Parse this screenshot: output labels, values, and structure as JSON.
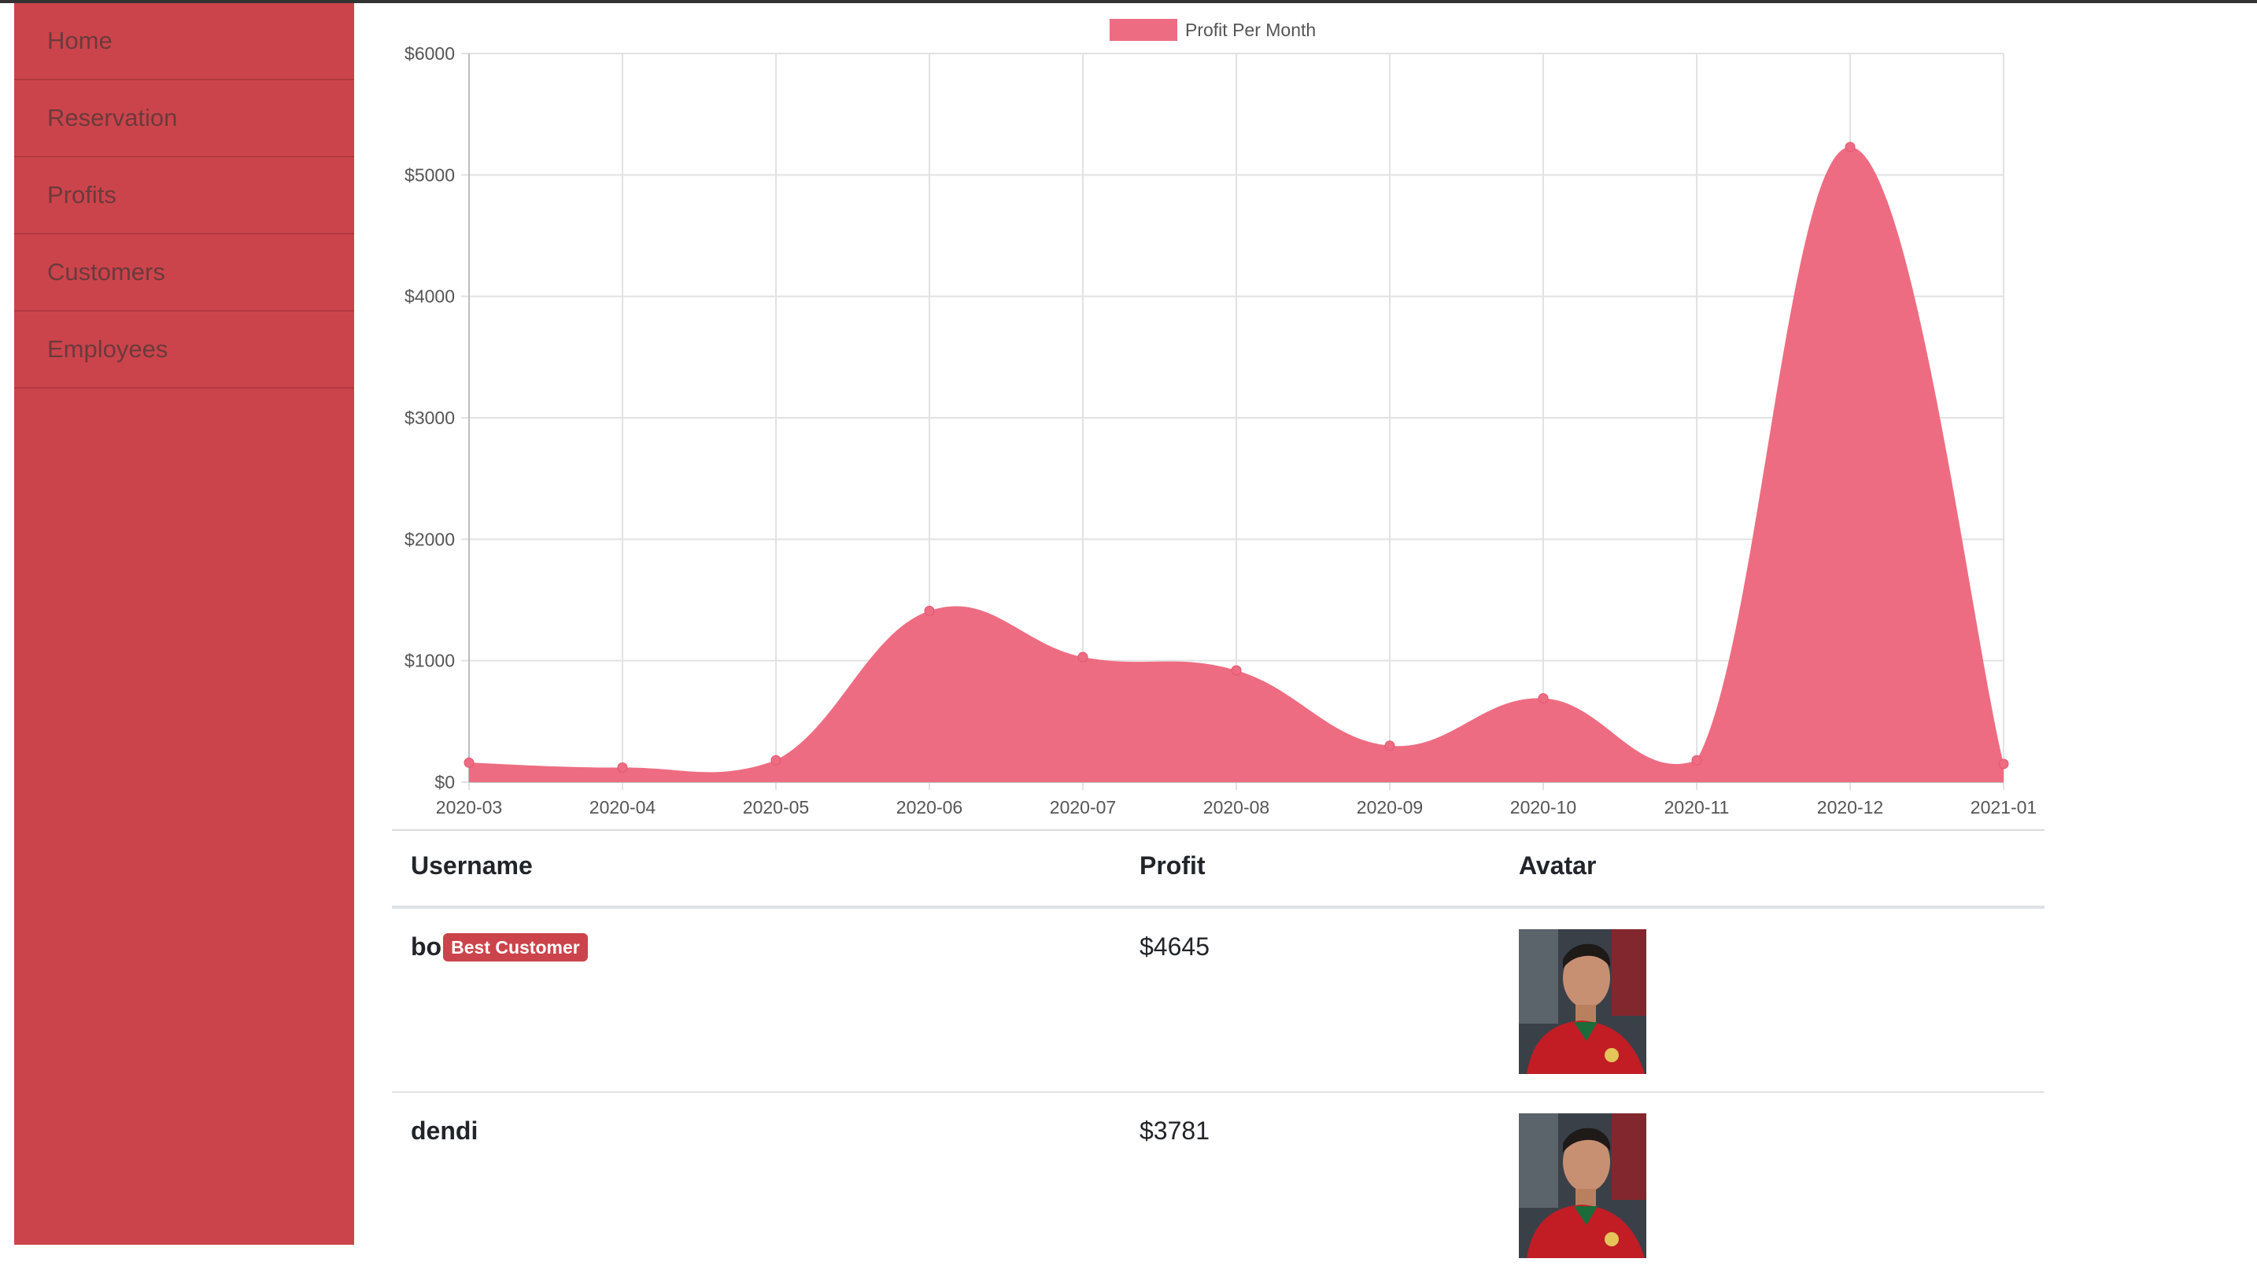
{
  "sidebar": {
    "items": [
      {
        "label": "Home"
      },
      {
        "label": "Reservation"
      },
      {
        "label": "Profits"
      },
      {
        "label": "Customers"
      },
      {
        "label": "Employees"
      }
    ]
  },
  "chart_data": {
    "type": "area",
    "legend": [
      "Profit Per Month"
    ],
    "legend_position": "top-center",
    "x": [
      "2020-03",
      "2020-04",
      "2020-05",
      "2020-06",
      "2020-07",
      "2020-08",
      "2020-09",
      "2020-10",
      "2020-11",
      "2020-12",
      "2021-01"
    ],
    "series": [
      {
        "name": "Profit Per Month",
        "values": [
          160,
          120,
          180,
          1410,
          1030,
          920,
          300,
          690,
          180,
          5230,
          150
        ],
        "color": "#ee6c82"
      }
    ],
    "y_ticks": [
      "$0",
      "$1000",
      "$2000",
      "$3000",
      "$4000",
      "$5000",
      "$6000"
    ],
    "ylim": [
      0,
      6000
    ],
    "grid": true
  },
  "table": {
    "headers": {
      "username": "Username",
      "profit": "Profit",
      "avatar": "Avatar"
    },
    "rows": [
      {
        "username": "bo",
        "badge": "Best Customer",
        "profit": "$4645",
        "avatar": "avatar-photo"
      },
      {
        "username": "dendi",
        "badge": "",
        "profit": "$3781",
        "avatar": "avatar-photo"
      }
    ]
  },
  "colors": {
    "sidebar": "#cc444b",
    "accent": "#ee6c82",
    "badge": "#cc444b"
  }
}
